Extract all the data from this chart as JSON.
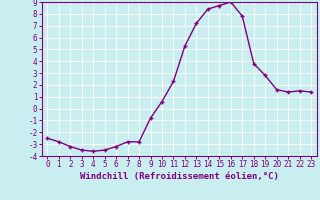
{
  "x": [
    0,
    1,
    2,
    3,
    4,
    5,
    6,
    7,
    8,
    9,
    10,
    11,
    12,
    13,
    14,
    15,
    16,
    17,
    18,
    19,
    20,
    21,
    22,
    23
  ],
  "y": [
    -2.5,
    -2.8,
    -3.2,
    -3.5,
    -3.6,
    -3.5,
    -3.2,
    -2.8,
    -2.8,
    -0.8,
    0.6,
    2.3,
    5.3,
    7.2,
    8.4,
    8.7,
    9.0,
    7.8,
    3.8,
    2.8,
    1.6,
    1.4,
    1.5,
    1.4
  ],
  "xlabel": "Windchill (Refroidissement éolien,°C)",
  "xlim": [
    -0.5,
    23.5
  ],
  "ylim": [
    -4,
    9
  ],
  "yticks": [
    -4,
    -3,
    -2,
    -1,
    0,
    1,
    2,
    3,
    4,
    5,
    6,
    7,
    8,
    9
  ],
  "xticks": [
    0,
    1,
    2,
    3,
    4,
    5,
    6,
    7,
    8,
    9,
    10,
    11,
    12,
    13,
    14,
    15,
    16,
    17,
    18,
    19,
    20,
    21,
    22,
    23
  ],
  "line_color": "#800080",
  "marker": "+",
  "bg_color": "#c8eef0",
  "grid_color": "#ffffff",
  "tick_label_color": "#800080",
  "axis_label_color": "#800080",
  "font_family": "monospace",
  "xlabel_fontsize": 6.5,
  "tick_fontsize": 5.5,
  "linewidth": 1.0,
  "markersize": 3.5,
  "markeredgewidth": 1.0
}
